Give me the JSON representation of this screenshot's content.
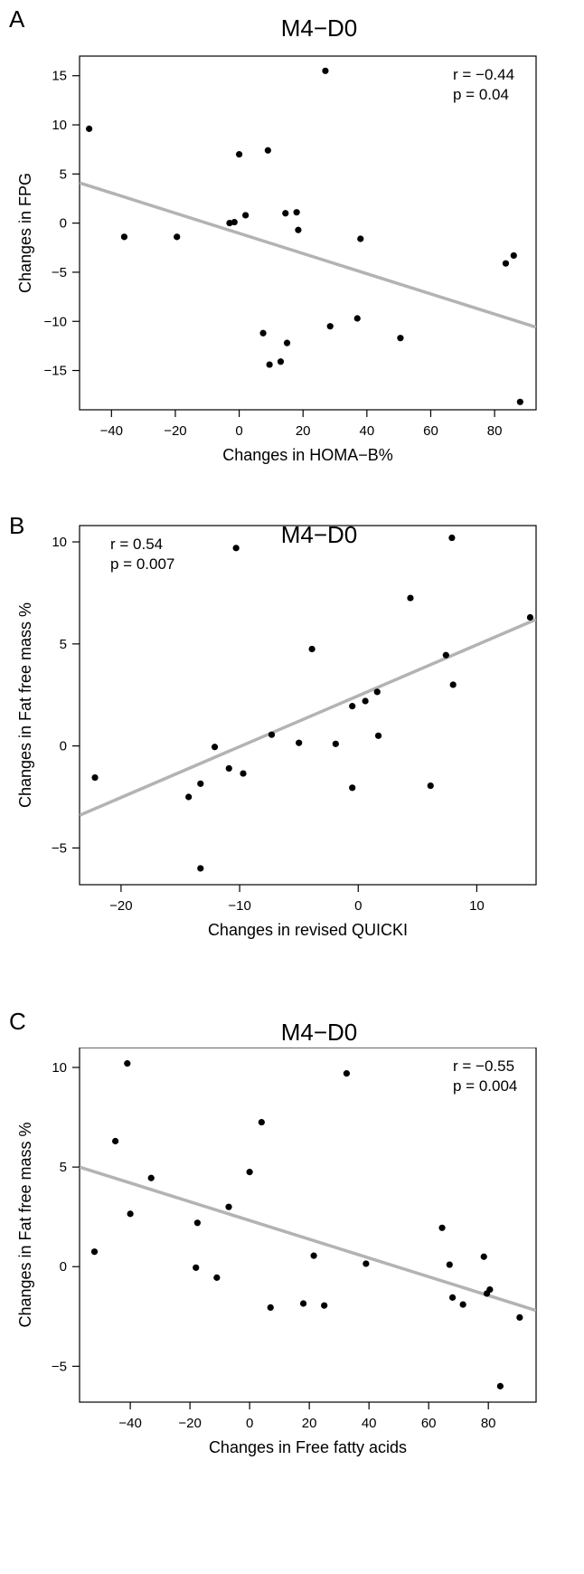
{
  "chart_data": [
    {
      "type": "scatter",
      "panel_label": "A",
      "title": "M4−D0",
      "xlabel": "Changes in HOMA−B%",
      "ylabel": "Changes in FPG",
      "xlim": [
        -50,
        93
      ],
      "ylim": [
        -19,
        17
      ],
      "xticks": [
        -40,
        -20,
        0,
        20,
        40,
        60,
        80
      ],
      "xtick_labels": [
        "−40",
        "−20",
        "0",
        "20",
        "40",
        "60",
        "80"
      ],
      "yticks": [
        -15,
        -10,
        -5,
        0,
        5,
        10,
        15
      ],
      "ytick_labels": [
        "−15",
        "−10",
        "−5",
        "0",
        "5",
        "10",
        "15"
      ],
      "annotation": [
        "r = −0.44",
        "p = 0.04"
      ],
      "annotation_position": "top-right",
      "fit_line": {
        "x": [
          -50,
          93
        ],
        "y": [
          4.1,
          -10.6
        ]
      },
      "points": [
        {
          "x": -47,
          "y": 9.6
        },
        {
          "x": -36,
          "y": -1.4
        },
        {
          "x": -19.5,
          "y": -1.4
        },
        {
          "x": -3,
          "y": 0.0
        },
        {
          "x": -1.5,
          "y": 0.1
        },
        {
          "x": 0,
          "y": 7.0
        },
        {
          "x": 2,
          "y": 0.8
        },
        {
          "x": 7.5,
          "y": -11.2
        },
        {
          "x": 9,
          "y": 7.4
        },
        {
          "x": 9.5,
          "y": -14.4
        },
        {
          "x": 13,
          "y": -14.1
        },
        {
          "x": 14.5,
          "y": 1.0
        },
        {
          "x": 15,
          "y": -12.2
        },
        {
          "x": 18,
          "y": 1.1
        },
        {
          "x": 18.5,
          "y": -0.7
        },
        {
          "x": 27,
          "y": 15.5
        },
        {
          "x": 28.5,
          "y": -10.5
        },
        {
          "x": 37,
          "y": -9.7
        },
        {
          "x": 38,
          "y": -1.6
        },
        {
          "x": 50.5,
          "y": -11.7
        },
        {
          "x": 83.5,
          "y": -4.1
        },
        {
          "x": 86,
          "y": -3.3
        },
        {
          "x": 88,
          "y": -18.2
        }
      ]
    },
    {
      "type": "scatter",
      "panel_label": "B",
      "title": "M4−D0",
      "xlabel": "Changes in revised QUICKI",
      "ylabel": "Changes in Fat free mass %",
      "xlim": [
        -23.5,
        15
      ],
      "ylim": [
        -6.8,
        10.8
      ],
      "xticks": [
        -20,
        -10,
        0,
        10
      ],
      "xtick_labels": [
        "−20",
        "−10",
        "0",
        "10"
      ],
      "yticks": [
        -5,
        0,
        5,
        10
      ],
      "ytick_labels": [
        "−5",
        "0",
        "5",
        "10"
      ],
      "annotation": [
        "r = 0.54",
        "p = 0.007"
      ],
      "annotation_position": "top-left",
      "fit_line": {
        "x": [
          -23.5,
          15
        ],
        "y": [
          -3.4,
          6.2
        ]
      },
      "points": [
        {
          "x": -22.2,
          "y": -1.55
        },
        {
          "x": -14.3,
          "y": -2.5
        },
        {
          "x": -13.3,
          "y": -1.85
        },
        {
          "x": -13.3,
          "y": -6.0
        },
        {
          "x": -12.1,
          "y": -0.05
        },
        {
          "x": -10.9,
          "y": -1.1
        },
        {
          "x": -10.3,
          "y": 9.7
        },
        {
          "x": -9.7,
          "y": -1.35
        },
        {
          "x": -7.3,
          "y": 0.55
        },
        {
          "x": -5.0,
          "y": 0.15
        },
        {
          "x": -3.9,
          "y": 4.75
        },
        {
          "x": -1.9,
          "y": 0.1
        },
        {
          "x": -0.5,
          "y": 1.95
        },
        {
          "x": -0.5,
          "y": -2.05
        },
        {
          "x": 0.6,
          "y": 2.2
        },
        {
          "x": 1.6,
          "y": 2.65
        },
        {
          "x": 1.7,
          "y": 0.5
        },
        {
          "x": 4.4,
          "y": 7.25
        },
        {
          "x": 6.1,
          "y": -1.95
        },
        {
          "x": 7.4,
          "y": 4.45
        },
        {
          "x": 7.9,
          "y": 10.2
        },
        {
          "x": 8.0,
          "y": 3.0
        },
        {
          "x": 14.5,
          "y": 6.3
        }
      ]
    },
    {
      "type": "scatter",
      "panel_label": "C",
      "title": "M4−D0",
      "xlabel": "Changes in Free fatty acids",
      "ylabel": "Changes in Fat free mass %",
      "xlim": [
        -57,
        96
      ],
      "ylim": [
        -6.8,
        11
      ],
      "xticks": [
        -40,
        -20,
        0,
        20,
        40,
        60,
        80
      ],
      "xtick_labels": [
        "−40",
        "−20",
        "0",
        "20",
        "40",
        "60",
        "80"
      ],
      "yticks": [
        -5,
        0,
        5,
        10
      ],
      "ytick_labels": [
        "−5",
        "0",
        "5",
        "10"
      ],
      "annotation": [
        "r = −0.55",
        "p = 0.004"
      ],
      "annotation_position": "top-right",
      "fit_line": {
        "x": [
          -57,
          96
        ],
        "y": [
          5.0,
          -2.2
        ]
      },
      "points": [
        {
          "x": -52,
          "y": 0.75
        },
        {
          "x": -45,
          "y": 6.3
        },
        {
          "x": -41,
          "y": 10.2
        },
        {
          "x": -40,
          "y": 2.65
        },
        {
          "x": -33,
          "y": 4.45
        },
        {
          "x": -18,
          "y": -0.05
        },
        {
          "x": -17.5,
          "y": 2.2
        },
        {
          "x": -11,
          "y": -0.55
        },
        {
          "x": -7,
          "y": 3.0
        },
        {
          "x": 0,
          "y": 4.75
        },
        {
          "x": 4,
          "y": 7.25
        },
        {
          "x": 7,
          "y": -2.05
        },
        {
          "x": 18,
          "y": -1.85
        },
        {
          "x": 21.5,
          "y": 0.55
        },
        {
          "x": 25,
          "y": -1.95
        },
        {
          "x": 32.5,
          "y": 9.7
        },
        {
          "x": 39,
          "y": 0.15
        },
        {
          "x": 64.5,
          "y": 1.95
        },
        {
          "x": 67,
          "y": 0.1
        },
        {
          "x": 68,
          "y": -1.55
        },
        {
          "x": 71.5,
          "y": -1.9
        },
        {
          "x": 78.5,
          "y": 0.5
        },
        {
          "x": 79.5,
          "y": -1.35
        },
        {
          "x": 80.5,
          "y": -1.15
        },
        {
          "x": 84,
          "y": -6.0
        },
        {
          "x": 90.5,
          "y": -2.55
        }
      ]
    }
  ]
}
